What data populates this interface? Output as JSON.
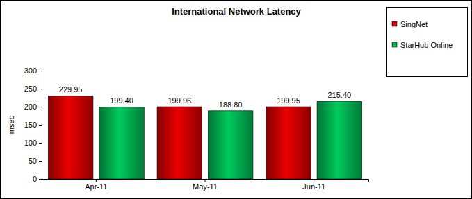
{
  "chart_data": {
    "type": "bar",
    "title": "International Network Latency",
    "y_label": "msec",
    "categories": [
      "Apr-11",
      "May-11",
      "Jun-11"
    ],
    "series": [
      {
        "name": "SingNet",
        "color": "#cc0000",
        "values": [
          229.95,
          199.96,
          199.95
        ],
        "value_labels": [
          "229.95",
          "199.96",
          "199.95"
        ]
      },
      {
        "name": "StarHub Online",
        "color": "#00b050",
        "values": [
          199.4,
          188.8,
          215.4
        ],
        "value_labels": [
          "199.40",
          "188.80",
          "215.40"
        ]
      }
    ],
    "ylim": [
      0,
      300
    ],
    "yticks": [
      0,
      50,
      100,
      150,
      200,
      250,
      300
    ],
    "grid": false,
    "legend": "right",
    "data_labels": true
  }
}
